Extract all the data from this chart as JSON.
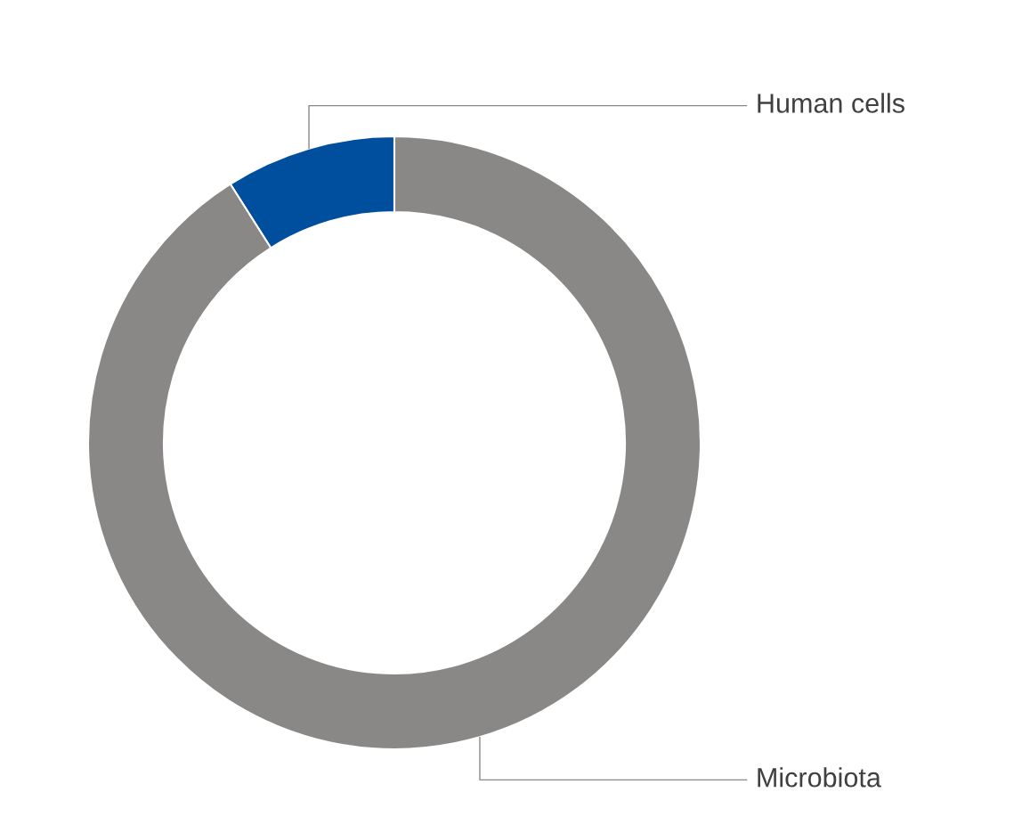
{
  "chart_data": {
    "type": "donut",
    "categories": [
      "Human cells",
      "Microbiota"
    ],
    "values": [
      9,
      91
    ],
    "colors": [
      "#004f9f",
      "#898886"
    ]
  }
}
